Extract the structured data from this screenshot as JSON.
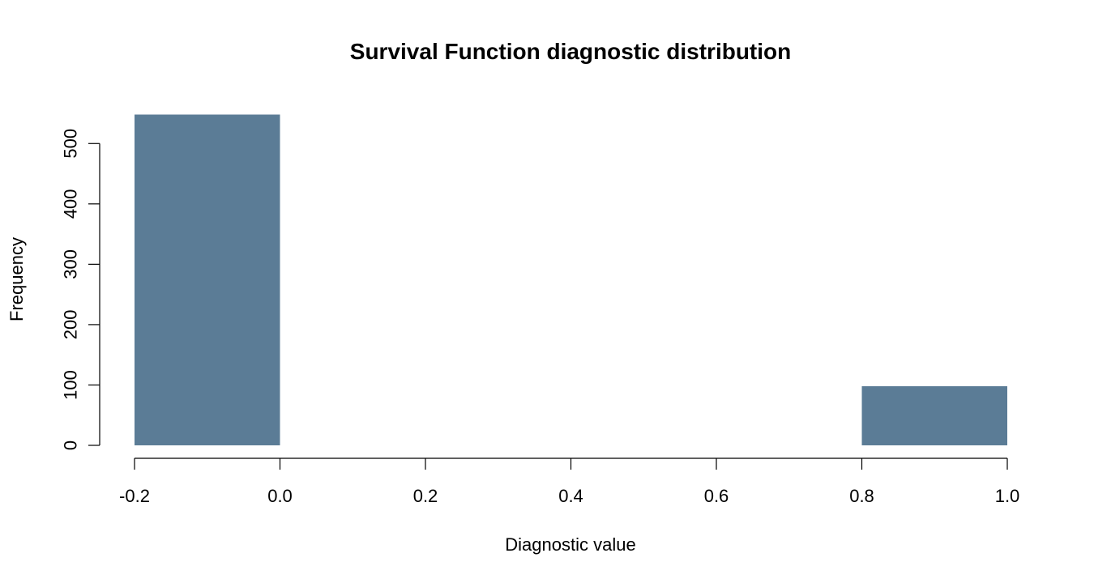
{
  "chart_data": {
    "type": "bar",
    "title": "Survival Function diagnostic distribution",
    "xlabel": "Diagnostic value",
    "ylabel": "Frequency",
    "xlim": [
      -0.2,
      1.0
    ],
    "ylim": [
      0,
      550
    ],
    "x_ticks": [
      -0.2,
      0.0,
      0.2,
      0.4,
      0.6,
      0.8,
      1.0
    ],
    "x_tick_labels": [
      "-0.2",
      "0.0",
      "0.2",
      "0.4",
      "0.6",
      "0.8",
      "1.0"
    ],
    "y_ticks": [
      0,
      100,
      200,
      300,
      400,
      500
    ],
    "y_tick_labels": [
      "0",
      "100",
      "200",
      "300",
      "400",
      "500"
    ],
    "bins": [
      {
        "x0": -0.2,
        "x1": 0.0,
        "count": 548
      },
      {
        "x0": 0.8,
        "x1": 1.0,
        "count": 98
      }
    ],
    "bar_color": "#5b7c96",
    "grid": false
  }
}
